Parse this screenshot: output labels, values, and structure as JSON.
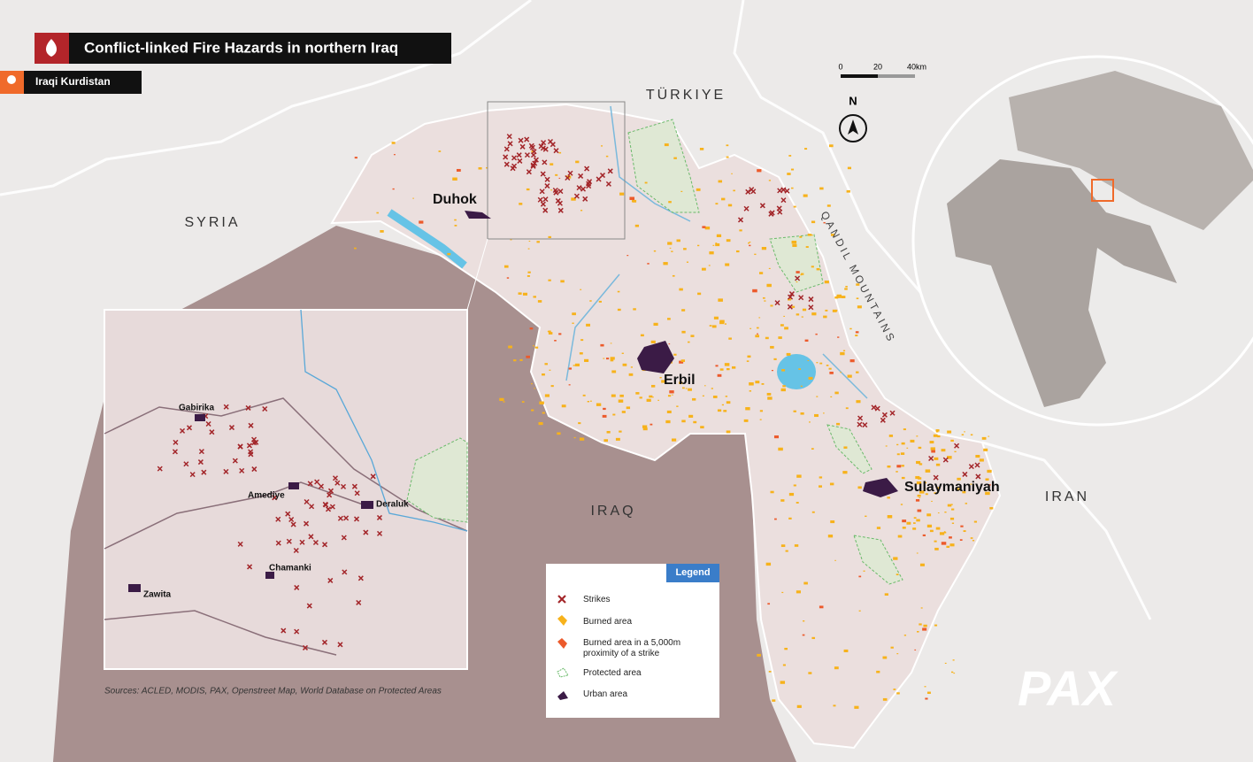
{
  "header": {
    "title": "Conflict-linked Fire Hazards in northern Iraq",
    "subtitle": "Iraqi Kurdistan"
  },
  "scale": {
    "ticks": [
      "0",
      "20",
      "40km"
    ]
  },
  "north": "N",
  "labels": {
    "countries": [
      "TÜRKIYE",
      "SYRIA",
      "IRAQ",
      "IRAN"
    ],
    "mountains": "QANDIL MOUNTAINS",
    "cities": [
      "Duhok",
      "Erbil",
      "Sulaymaniyah"
    ]
  },
  "inset": {
    "places": [
      "Gabirika",
      "Amediye",
      "Deraluk",
      "Chamanki",
      "Zawita"
    ]
  },
  "legend": {
    "title": "Legend",
    "items": [
      "Strikes",
      "Burned area",
      "Burned area in a 5,000m proximity of a strike",
      "Protected area",
      "Urban area"
    ]
  },
  "sources": "Sources: ACLED, MODIS, PAX, Openstreet Map, World Database on Protected Areas",
  "logo": "PAX"
}
